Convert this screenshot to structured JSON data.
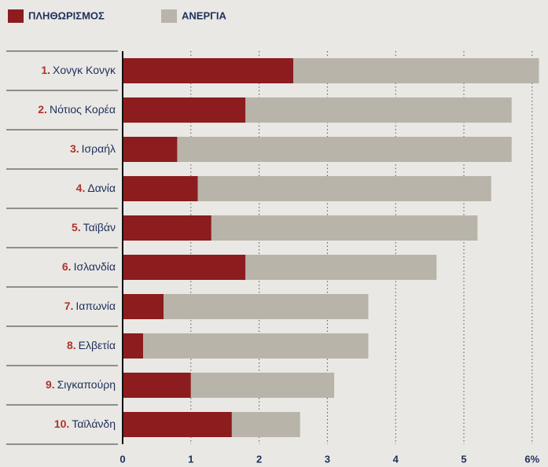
{
  "chart_data": {
    "type": "stacked-bar-horizontal",
    "ranks": [
      "1.",
      "2.",
      "3.",
      "4.",
      "5.",
      "6.",
      "7.",
      "8.",
      "9.",
      "10."
    ],
    "categories": [
      "Χονγκ Κονγκ",
      "Νότιος Κορέα",
      "Ισραήλ",
      "Δανία",
      "Ταϊβάν",
      "Ισλανδία",
      "Ιαπωνία",
      "Ελβετία",
      "Σιγκαπούρη",
      "Ταϊλάνδη"
    ],
    "series": [
      {
        "name": "ΠΛΗΘΩΡΙΣΜΟΣ",
        "color": "#8c1c1e",
        "values": [
          2.5,
          1.8,
          0.8,
          1.1,
          1.3,
          1.8,
          0.6,
          0.3,
          1.0,
          1.6
        ]
      },
      {
        "name": "ΑΝΕΡΓΙΑ",
        "color": "#b9b4a9",
        "values": [
          3.6,
          3.9,
          4.9,
          4.3,
          3.9,
          2.8,
          3.0,
          3.3,
          2.1,
          1.0
        ]
      }
    ],
    "xlim": [
      0,
      6.1
    ],
    "xticks": [
      0,
      1,
      2,
      3,
      4,
      5,
      {
        "value": 6,
        "label": "6%"
      }
    ],
    "grid": true
  }
}
